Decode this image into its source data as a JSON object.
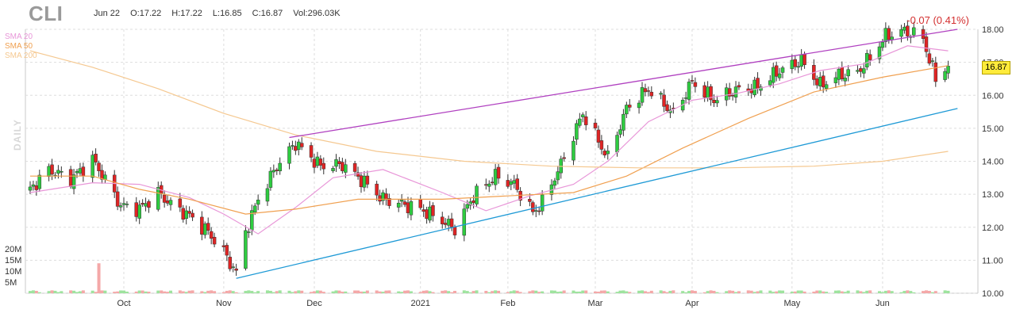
{
  "header": {
    "ticker": "CLI",
    "date": "Jun 22",
    "open": "O:17.22",
    "high": "H:17.22",
    "low": "L:16.85",
    "close": "C:16.87",
    "volume": "Vol:296.03K",
    "change": "-0.07 (0.41%)",
    "period": "DAILY",
    "last_price": "16.87"
  },
  "legend": [
    {
      "label": "SMA 20",
      "color": "#e896d8"
    },
    {
      "label": "SMA 50",
      "color": "#f0a050"
    },
    {
      "label": "SMA 200",
      "color": "#f5c890"
    }
  ],
  "colors": {
    "up": "#2ecc40",
    "down": "#e02424",
    "volume_up": "#9ee39e",
    "volume_down": "#f4a8a8",
    "grid": "#dddddd",
    "upper_trendline": "#b040c0",
    "lower_trendline": "#1f9ad6",
    "change": "#d32f2f",
    "last_price_bg": "#ffeb3b"
  },
  "chart_data": {
    "type": "candlestick",
    "title": "CLI",
    "period": "DAILY",
    "ylim": [
      10.0,
      18.0
    ],
    "y_ticks": [
      "18.00",
      "17.00",
      "16.00",
      "15.00",
      "14.00",
      "13.00",
      "12.00",
      "11.00",
      "10.00"
    ],
    "volume_ticks": [
      "20M",
      "15M",
      "10M",
      "5M"
    ],
    "volume_ylim": [
      0,
      25
    ],
    "x_ticks": [
      {
        "label": "Oct",
        "date": "2020-10-01"
      },
      {
        "label": "Nov",
        "date": "2020-11-02"
      },
      {
        "label": "Dec",
        "date": "2020-12-01"
      },
      {
        "label": "2021",
        "date": "2021-01-04"
      },
      {
        "label": "Feb",
        "date": "2021-02-01"
      },
      {
        "label": "Mar",
        "date": "2021-03-01"
      },
      {
        "label": "Apr",
        "date": "2021-04-01"
      },
      {
        "label": "May",
        "date": "2021-05-03"
      },
      {
        "label": "Jun",
        "date": "2021-06-01"
      }
    ],
    "x_range": [
      "2020-09-01",
      "2021-06-30"
    ],
    "close_path": [
      [
        "2020-09-01",
        13.15
      ],
      [
        "2020-09-07",
        13.75
      ],
      [
        "2020-09-14",
        13.45
      ],
      [
        "2020-09-21",
        14.05
      ],
      [
        "2020-09-25",
        13.45
      ],
      [
        "2020-09-30",
        12.65
      ],
      [
        "2020-10-06",
        12.55
      ],
      [
        "2020-10-12",
        13.05
      ],
      [
        "2020-10-16",
        12.7
      ],
      [
        "2020-10-22",
        12.35
      ],
      [
        "2020-10-28",
        11.85
      ],
      [
        "2020-11-02",
        11.25
      ],
      [
        "2020-11-06",
        10.6
      ],
      [
        "2020-11-09",
        11.85
      ],
      [
        "2020-11-13",
        12.85
      ],
      [
        "2020-11-19",
        13.85
      ],
      [
        "2020-11-25",
        14.55
      ],
      [
        "2020-12-03",
        13.85
      ],
      [
        "2020-12-10",
        13.9
      ],
      [
        "2020-12-16",
        13.45
      ],
      [
        "2020-12-23",
        12.85
      ],
      [
        "2021-01-04",
        12.55
      ],
      [
        "2021-01-11",
        12.2
      ],
      [
        "2021-01-15",
        11.95
      ],
      [
        "2021-01-21",
        12.95
      ],
      [
        "2021-01-28",
        13.55
      ],
      [
        "2021-02-03",
        13.3
      ],
      [
        "2021-02-09",
        12.45
      ],
      [
        "2021-02-12",
        12.75
      ],
      [
        "2021-02-18",
        13.9
      ],
      [
        "2021-02-25",
        15.45
      ],
      [
        "2021-03-05",
        14.1
      ],
      [
        "2021-03-11",
        15.6
      ],
      [
        "2021-03-18",
        16.2
      ],
      [
        "2021-03-26",
        15.45
      ],
      [
        "2021-04-01",
        16.4
      ],
      [
        "2021-04-08",
        15.85
      ],
      [
        "2021-04-15",
        16.15
      ],
      [
        "2021-04-22",
        16.25
      ],
      [
        "2021-04-29",
        16.75
      ],
      [
        "2021-05-06",
        17.05
      ],
      [
        "2021-05-12",
        16.3
      ],
      [
        "2021-05-18",
        16.6
      ],
      [
        "2021-05-24",
        16.7
      ],
      [
        "2021-05-28",
        17.15
      ],
      [
        "2021-06-02",
        17.8
      ],
      [
        "2021-06-08",
        17.95
      ],
      [
        "2021-06-14",
        17.75
      ],
      [
        "2021-06-16",
        17.05
      ],
      [
        "2021-06-18",
        16.55
      ],
      [
        "2021-06-22",
        16.87
      ]
    ],
    "sma": [
      {
        "name": "SMA 20",
        "color": "#e896d8",
        "points": [
          [
            "2020-09-01",
            13.05
          ],
          [
            "2020-09-21",
            13.35
          ],
          [
            "2020-10-06",
            13.3
          ],
          [
            "2020-10-22",
            12.9
          ],
          [
            "2020-11-02",
            12.4
          ],
          [
            "2020-11-13",
            11.8
          ],
          [
            "2020-11-25",
            12.6
          ],
          [
            "2020-12-07",
            13.5
          ],
          [
            "2020-12-23",
            13.75
          ],
          [
            "2021-01-11",
            13.05
          ],
          [
            "2021-01-25",
            12.5
          ],
          [
            "2021-02-08",
            12.95
          ],
          [
            "2021-02-22",
            13.3
          ],
          [
            "2021-03-05",
            14.0
          ],
          [
            "2021-03-18",
            15.2
          ],
          [
            "2021-04-01",
            15.85
          ],
          [
            "2021-04-15",
            16.05
          ],
          [
            "2021-04-29",
            16.35
          ],
          [
            "2021-05-12",
            16.75
          ],
          [
            "2021-05-26",
            16.95
          ],
          [
            "2021-06-09",
            17.5
          ],
          [
            "2021-06-22",
            17.35
          ]
        ]
      },
      {
        "name": "SMA 50",
        "color": "#f0a050",
        "points": [
          [
            "2020-09-01",
            13.55
          ],
          [
            "2020-09-21",
            13.55
          ],
          [
            "2020-10-06",
            13.15
          ],
          [
            "2020-10-22",
            12.85
          ],
          [
            "2020-11-09",
            12.4
          ],
          [
            "2020-11-25",
            12.55
          ],
          [
            "2020-12-15",
            12.85
          ],
          [
            "2021-01-11",
            12.85
          ],
          [
            "2021-02-01",
            12.95
          ],
          [
            "2021-02-22",
            13.05
          ],
          [
            "2021-03-11",
            13.55
          ],
          [
            "2021-03-29",
            14.4
          ],
          [
            "2021-04-19",
            15.3
          ],
          [
            "2021-05-10",
            16.1
          ],
          [
            "2021-06-01",
            16.55
          ],
          [
            "2021-06-22",
            16.9
          ]
        ]
      },
      {
        "name": "SMA 200",
        "color": "#f5c890",
        "points": [
          [
            "2020-09-01",
            17.35
          ],
          [
            "2020-09-21",
            16.85
          ],
          [
            "2020-10-12",
            16.2
          ],
          [
            "2020-11-02",
            15.45
          ],
          [
            "2020-11-25",
            14.8
          ],
          [
            "2020-12-21",
            14.3
          ],
          [
            "2021-01-18",
            14.0
          ],
          [
            "2021-02-15",
            13.85
          ],
          [
            "2021-03-15",
            13.8
          ],
          [
            "2021-04-12",
            13.8
          ],
          [
            "2021-05-10",
            13.85
          ],
          [
            "2021-06-01",
            14.0
          ],
          [
            "2021-06-22",
            14.3
          ]
        ]
      }
    ],
    "trendlines": [
      {
        "name": "upper",
        "color": "#b040c0",
        "from": [
          "2020-11-23",
          14.72
        ],
        "to": [
          "2021-06-25",
          18.0
        ]
      },
      {
        "name": "lower",
        "color": "#1f9ad6",
        "from": [
          "2020-11-06",
          10.45
        ],
        "to": [
          "2021-06-25",
          15.6
        ]
      }
    ],
    "volume_spike": {
      "date": "2020-09-23",
      "value": 13.5
    },
    "last_close": 16.87
  }
}
